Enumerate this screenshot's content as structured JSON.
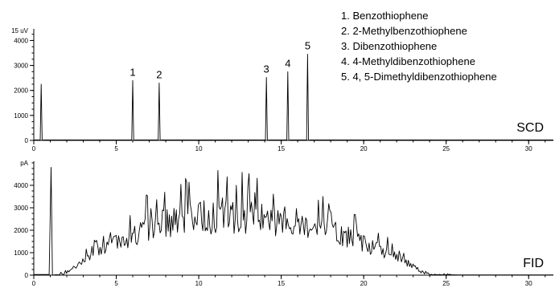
{
  "chart_data": [
    {
      "type": "line",
      "detector": "SCD",
      "y_unit": "15 uV",
      "xlim": [
        0,
        31.5
      ],
      "ylim": [
        0,
        4400
      ],
      "x_ticks": [
        0,
        5,
        10,
        15,
        20,
        25,
        30
      ],
      "y_ticks": [
        0,
        1000,
        2000,
        3000,
        4000
      ],
      "peaks": [
        {
          "x": 0.45,
          "height": 2250,
          "label": ""
        },
        {
          "x": 6.0,
          "height": 2400,
          "label": "1"
        },
        {
          "x": 7.6,
          "height": 2300,
          "label": "2"
        },
        {
          "x": 14.1,
          "height": 2520,
          "label": "3"
        },
        {
          "x": 15.4,
          "height": 2750,
          "label": "4"
        },
        {
          "x": 16.6,
          "height": 3450,
          "label": "5"
        }
      ],
      "legend": [
        "1. Benzothiophene",
        "2. 2-Methylbenzothiophene",
        "3. Dibenzothiophene",
        "4. 4-Methyldibenzothiophene",
        "5. 4, 5-Dimethyldibenzothiophene"
      ]
    },
    {
      "type": "line",
      "detector": "FID",
      "y_unit": "pA",
      "xlim": [
        0,
        31.5
      ],
      "ylim": [
        0,
        5000
      ],
      "x_ticks": [
        0,
        5,
        10,
        15,
        20,
        25,
        30
      ],
      "y_ticks": [
        0,
        1000,
        2000,
        3000,
        4000
      ],
      "spike": {
        "x": 1.05,
        "height": 4800
      },
      "envelope_peak": {
        "x": 11.5,
        "height": 3050
      },
      "envelope_range": [
        1.8,
        24.0
      ]
    }
  ]
}
